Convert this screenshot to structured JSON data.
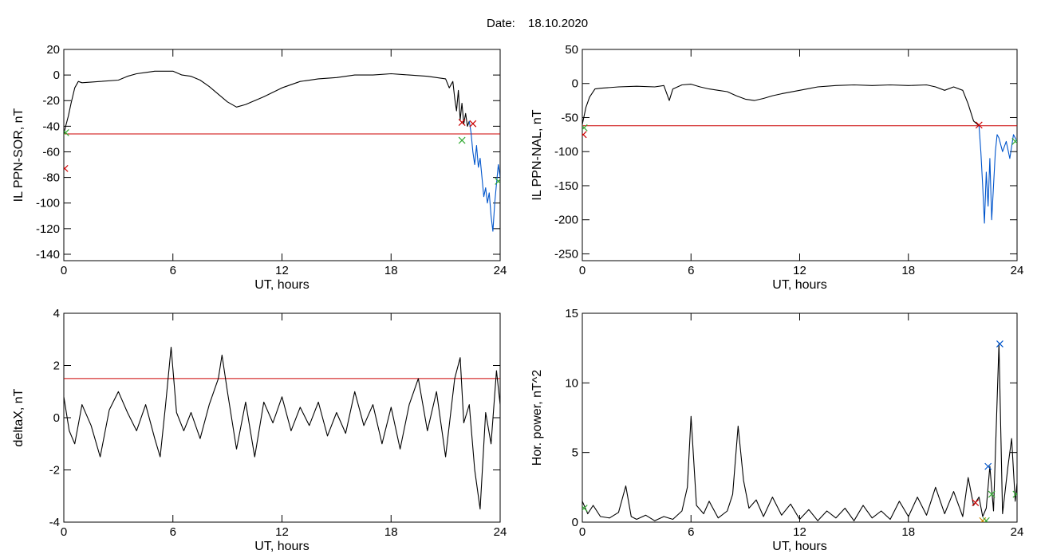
{
  "figure": {
    "date_label": "Date:",
    "date_value": "18.10.2020"
  },
  "chart_data": [
    {
      "type": "line",
      "id": "sor",
      "ylabel": "IL PPN-SOR, nT",
      "xlabel": "UT, hours",
      "xlim": [
        0,
        24
      ],
      "ylim": [
        -145,
        20
      ],
      "xticks": [
        0,
        6,
        12,
        18,
        24
      ],
      "yticks": [
        -140,
        -120,
        -100,
        -80,
        -60,
        -40,
        -20,
        0,
        20
      ],
      "threshold": -46,
      "series": [
        {
          "color": "#000000",
          "points": [
            [
              0,
              -46
            ],
            [
              0.1,
              -40
            ],
            [
              0.25,
              -32
            ],
            [
              0.4,
              -22
            ],
            [
              0.6,
              -10
            ],
            [
              0.8,
              -5
            ],
            [
              1,
              -6
            ],
            [
              2,
              -5
            ],
            [
              3,
              -4
            ],
            [
              3.5,
              -1
            ],
            [
              4,
              1
            ],
            [
              4.5,
              2
            ],
            [
              5,
              3
            ],
            [
              5.5,
              3
            ],
            [
              6,
              3
            ],
            [
              6.5,
              0
            ],
            [
              7,
              -1
            ],
            [
              7.5,
              -4
            ],
            [
              8,
              -9
            ],
            [
              8.5,
              -15
            ],
            [
              9,
              -21
            ],
            [
              9.5,
              -25
            ],
            [
              10,
              -23
            ],
            [
              10.5,
              -20
            ],
            [
              11,
              -17
            ],
            [
              12,
              -10
            ],
            [
              13,
              -5
            ],
            [
              14,
              -3
            ],
            [
              15,
              -2
            ],
            [
              16,
              0
            ],
            [
              17,
              0
            ],
            [
              18,
              1
            ],
            [
              19,
              0
            ],
            [
              20,
              -1
            ],
            [
              20.5,
              -2
            ],
            [
              21,
              -3
            ],
            [
              21.2,
              -10
            ],
            [
              21.4,
              -5
            ],
            [
              21.5,
              -18
            ],
            [
              21.6,
              -28
            ],
            [
              21.7,
              -12
            ],
            [
              21.8,
              -35
            ],
            [
              21.9,
              -22
            ],
            [
              22,
              -38
            ],
            [
              22.1,
              -30
            ],
            [
              22.2,
              -40
            ],
            [
              22.3,
              -36
            ]
          ]
        },
        {
          "color": "#0055cc",
          "points": [
            [
              22.3,
              -36
            ],
            [
              22.4,
              -45
            ],
            [
              22.5,
              -60
            ],
            [
              22.6,
              -70
            ],
            [
              22.7,
              -55
            ],
            [
              22.8,
              -72
            ],
            [
              22.9,
              -65
            ],
            [
              23,
              -80
            ],
            [
              23.1,
              -95
            ],
            [
              23.2,
              -88
            ],
            [
              23.3,
              -100
            ],
            [
              23.4,
              -92
            ],
            [
              23.5,
              -110
            ],
            [
              23.6,
              -122
            ],
            [
              23.7,
              -100
            ],
            [
              23.8,
              -85
            ],
            [
              23.9,
              -70
            ],
            [
              24,
              -80
            ]
          ]
        }
      ],
      "markers": [
        {
          "x": 0.05,
          "y": -73,
          "color": "#cc0000"
        },
        {
          "x": 0.1,
          "y": -45,
          "color": "#33aa33"
        },
        {
          "x": 21.9,
          "y": -37,
          "color": "#cc0000"
        },
        {
          "x": 22.5,
          "y": -38,
          "color": "#cc0000"
        },
        {
          "x": 21.9,
          "y": -51,
          "color": "#33aa33"
        },
        {
          "x": 23.9,
          "y": -83,
          "color": "#33aa33"
        }
      ]
    },
    {
      "type": "line",
      "id": "nal",
      "ylabel": "IL PPN-NAL, nT",
      "xlabel": "UT, hours",
      "xlim": [
        0,
        24
      ],
      "ylim": [
        -260,
        50
      ],
      "xticks": [
        0,
        6,
        12,
        18,
        24
      ],
      "yticks": [
        -250,
        -200,
        -150,
        -100,
        -50,
        0,
        50
      ],
      "threshold": -62,
      "series": [
        {
          "color": "#000000",
          "points": [
            [
              0,
              -60
            ],
            [
              0.2,
              -35
            ],
            [
              0.4,
              -20
            ],
            [
              0.7,
              -8
            ],
            [
              1,
              -7
            ],
            [
              2,
              -5
            ],
            [
              3,
              -4
            ],
            [
              4,
              -5
            ],
            [
              4.5,
              -3
            ],
            [
              4.8,
              -25
            ],
            [
              5,
              -8
            ],
            [
              5.5,
              -2
            ],
            [
              6,
              -1
            ],
            [
              6.5,
              -5
            ],
            [
              7,
              -8
            ],
            [
              7.5,
              -10
            ],
            [
              8,
              -12
            ],
            [
              8.5,
              -18
            ],
            [
              9,
              -23
            ],
            [
              9.5,
              -25
            ],
            [
              10,
              -22
            ],
            [
              10.5,
              -18
            ],
            [
              11,
              -15
            ],
            [
              12,
              -10
            ],
            [
              13,
              -5
            ],
            [
              14,
              -3
            ],
            [
              15,
              -2
            ],
            [
              16,
              -3
            ],
            [
              17,
              -2
            ],
            [
              18,
              -3
            ],
            [
              19,
              -2
            ],
            [
              19.5,
              -5
            ],
            [
              20,
              -10
            ],
            [
              20.5,
              -5
            ],
            [
              21,
              -10
            ],
            [
              21.3,
              -30
            ],
            [
              21.6,
              -55
            ],
            [
              21.9,
              -62
            ]
          ]
        },
        {
          "color": "#0055cc",
          "points": [
            [
              21.9,
              -62
            ],
            [
              22,
              -100
            ],
            [
              22.1,
              -150
            ],
            [
              22.2,
              -205
            ],
            [
              22.3,
              -130
            ],
            [
              22.4,
              -180
            ],
            [
              22.5,
              -110
            ],
            [
              22.6,
              -200
            ],
            [
              22.7,
              -150
            ],
            [
              22.8,
              -100
            ],
            [
              22.9,
              -75
            ],
            [
              23,
              -80
            ],
            [
              23.2,
              -100
            ],
            [
              23.4,
              -85
            ],
            [
              23.6,
              -110
            ],
            [
              23.8,
              -75
            ],
            [
              24,
              -85
            ]
          ]
        }
      ],
      "markers": [
        {
          "x": 0.05,
          "y": -75,
          "color": "#cc0000"
        },
        {
          "x": 0.1,
          "y": -65,
          "color": "#33aa33"
        },
        {
          "x": 21.9,
          "y": -61,
          "color": "#cc0000"
        },
        {
          "x": 23.9,
          "y": -85,
          "color": "#33aa33"
        }
      ]
    },
    {
      "type": "line",
      "id": "deltax",
      "ylabel": "deltaX, nT",
      "xlabel": "UT, hours",
      "xlim": [
        0,
        24
      ],
      "ylim": [
        -4,
        4
      ],
      "xticks": [
        0,
        6,
        12,
        18,
        24
      ],
      "yticks": [
        -4,
        -2,
        0,
        2,
        4
      ],
      "threshold": 1.5,
      "series": [
        {
          "color": "#000000",
          "points": [
            [
              0,
              0.8
            ],
            [
              0.3,
              -0.5
            ],
            [
              0.6,
              -1.0
            ],
            [
              1,
              0.5
            ],
            [
              1.5,
              -0.3
            ],
            [
              2,
              -1.5
            ],
            [
              2.5,
              0.3
            ],
            [
              3,
              1.0
            ],
            [
              3.5,
              0.2
            ],
            [
              4,
              -0.5
            ],
            [
              4.5,
              0.5
            ],
            [
              5,
              -0.8
            ],
            [
              5.3,
              -1.5
            ],
            [
              5.6,
              0.5
            ],
            [
              5.9,
              2.7
            ],
            [
              6.2,
              0.2
            ],
            [
              6.6,
              -0.5
            ],
            [
              7,
              0.2
            ],
            [
              7.5,
              -0.8
            ],
            [
              8,
              0.5
            ],
            [
              8.5,
              1.5
            ],
            [
              8.7,
              2.4
            ],
            [
              9,
              1.0
            ],
            [
              9.5,
              -1.2
            ],
            [
              10,
              0.6
            ],
            [
              10.5,
              -1.5
            ],
            [
              11,
              0.6
            ],
            [
              11.5,
              -0.2
            ],
            [
              12,
              0.8
            ],
            [
              12.5,
              -0.5
            ],
            [
              13,
              0.4
            ],
            [
              13.5,
              -0.3
            ],
            [
              14,
              0.6
            ],
            [
              14.5,
              -0.7
            ],
            [
              15,
              0.2
            ],
            [
              15.5,
              -0.6
            ],
            [
              16,
              1.0
            ],
            [
              16.5,
              -0.3
            ],
            [
              17,
              0.5
            ],
            [
              17.5,
              -1.0
            ],
            [
              18,
              0.4
            ],
            [
              18.5,
              -1.2
            ],
            [
              19,
              0.5
            ],
            [
              19.5,
              1.5
            ],
            [
              20,
              -0.5
            ],
            [
              20.5,
              1.0
            ],
            [
              21,
              -1.5
            ],
            [
              21.5,
              1.5
            ],
            [
              21.8,
              2.3
            ],
            [
              22,
              -0.2
            ],
            [
              22.3,
              0.5
            ],
            [
              22.6,
              -2.0
            ],
            [
              22.9,
              -3.5
            ],
            [
              23.2,
              0.2
            ],
            [
              23.5,
              -1.0
            ],
            [
              23.8,
              1.8
            ],
            [
              24,
              0.5
            ]
          ]
        }
      ],
      "markers": []
    },
    {
      "type": "line",
      "id": "power",
      "ylabel": "Hor. power, nT^2",
      "xlabel": "UT, hours",
      "xlim": [
        0,
        24
      ],
      "ylim": [
        0,
        15
      ],
      "xticks": [
        0,
        6,
        12,
        18,
        24
      ],
      "yticks": [
        0,
        5,
        10,
        15
      ],
      "threshold": null,
      "series": [
        {
          "color": "#000000",
          "points": [
            [
              0,
              1.5
            ],
            [
              0.3,
              0.6
            ],
            [
              0.6,
              1.2
            ],
            [
              1,
              0.4
            ],
            [
              1.5,
              0.3
            ],
            [
              2,
              0.7
            ],
            [
              2.4,
              2.6
            ],
            [
              2.7,
              0.4
            ],
            [
              3,
              0.2
            ],
            [
              3.5,
              0.5
            ],
            [
              4,
              0.1
            ],
            [
              4.5,
              0.4
            ],
            [
              5,
              0.2
            ],
            [
              5.5,
              0.8
            ],
            [
              5.8,
              2.5
            ],
            [
              6,
              7.6
            ],
            [
              6.3,
              1.2
            ],
            [
              6.7,
              0.6
            ],
            [
              7,
              1.5
            ],
            [
              7.5,
              0.3
            ],
            [
              8,
              0.8
            ],
            [
              8.3,
              2.0
            ],
            [
              8.6,
              6.9
            ],
            [
              8.9,
              3.0
            ],
            [
              9.2,
              1.0
            ],
            [
              9.6,
              1.6
            ],
            [
              10,
              0.4
            ],
            [
              10.5,
              1.8
            ],
            [
              11,
              0.5
            ],
            [
              11.5,
              1.3
            ],
            [
              12,
              0.2
            ],
            [
              12.5,
              0.9
            ],
            [
              13,
              0.1
            ],
            [
              13.5,
              0.8
            ],
            [
              14,
              0.3
            ],
            [
              14.5,
              1.0
            ],
            [
              15,
              0.1
            ],
            [
              15.5,
              1.2
            ],
            [
              16,
              0.3
            ],
            [
              16.5,
              0.8
            ],
            [
              17,
              0.2
            ],
            [
              17.5,
              1.5
            ],
            [
              18,
              0.4
            ],
            [
              18.5,
              1.8
            ],
            [
              19,
              0.5
            ],
            [
              19.5,
              2.5
            ],
            [
              20,
              0.6
            ],
            [
              20.5,
              2.2
            ],
            [
              21,
              0.4
            ],
            [
              21.3,
              3.2
            ],
            [
              21.6,
              1.2
            ],
            [
              21.9,
              1.8
            ],
            [
              22.1,
              0.4
            ],
            [
              22.3,
              1.0
            ],
            [
              22.5,
              4.0
            ],
            [
              22.7,
              0.8
            ],
            [
              23,
              12.8
            ],
            [
              23.2,
              0.6
            ],
            [
              23.5,
              4.0
            ],
            [
              23.7,
              6.0
            ],
            [
              23.9,
              1.5
            ],
            [
              24,
              2.8
            ]
          ]
        }
      ],
      "markers": [
        {
          "x": 0.1,
          "y": 1.0,
          "color": "#33aa33"
        },
        {
          "x": 21.7,
          "y": 1.4,
          "color": "#cc0000"
        },
        {
          "x": 22.1,
          "y": 0.1,
          "color": "#cc8800"
        },
        {
          "x": 22.3,
          "y": 0.1,
          "color": "#33aa33"
        },
        {
          "x": 22.4,
          "y": 4.0,
          "color": "#0055cc"
        },
        {
          "x": 22.6,
          "y": 2.0,
          "color": "#33aa33"
        },
        {
          "x": 23.05,
          "y": 12.8,
          "color": "#0055cc"
        },
        {
          "x": 23.95,
          "y": 2.0,
          "color": "#33aa33"
        }
      ]
    }
  ]
}
